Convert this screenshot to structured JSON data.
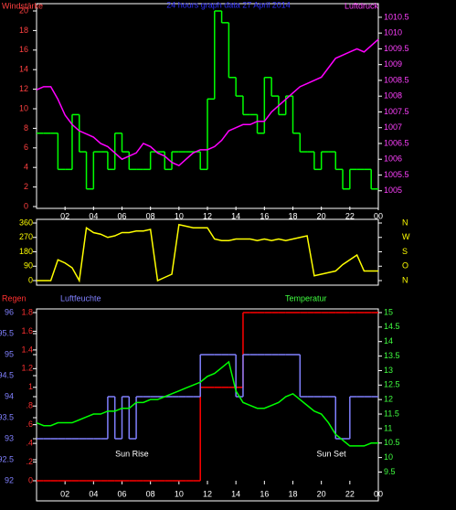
{
  "chart_data": [
    {
      "type": "line",
      "title": "24 hours graph data 27 April 2014",
      "x": [
        0,
        0.5,
        1,
        1.5,
        2,
        2.5,
        3,
        3.5,
        4,
        4.5,
        5,
        5.5,
        6,
        6.5,
        7,
        7.5,
        8,
        8.5,
        9,
        9.5,
        10,
        10.5,
        11,
        11.5,
        12,
        12.5,
        13,
        13.5,
        14,
        14.5,
        15,
        15.5,
        16,
        16.5,
        17,
        17.5,
        18,
        18.5,
        19,
        19.5,
        20,
        20.5,
        21,
        21.5,
        22,
        22.5,
        23,
        23.5,
        24
      ],
      "xlim": [
        0,
        24
      ],
      "xticks": [
        {
          "value": 2,
          "label": "02"
        },
        {
          "value": 4,
          "label": "04"
        },
        {
          "value": 6,
          "label": "06"
        },
        {
          "value": 8,
          "label": "08"
        },
        10,
        12,
        14,
        16,
        18,
        20,
        22,
        {
          "value": 24,
          "label": "00"
        }
      ],
      "ylim": [
        0,
        20
      ],
      "yticks": [
        0,
        2,
        4,
        6,
        8,
        10,
        12,
        14,
        16,
        18,
        20
      ],
      "y2lim": [
        1004.5,
        1010.7
      ],
      "y2ticks": [
        1005,
        1005.5,
        1006,
        1006.5,
        1007,
        1007.5,
        1008,
        1008.5,
        1009,
        1009.5,
        1010,
        1010.5
      ],
      "series": [
        {
          "name": "Windstärke",
          "color": "#00ff00",
          "step": true,
          "values": [
            7.5,
            7.5,
            7.5,
            3.8,
            3.8,
            9.4,
            5.6,
            1.8,
            5.6,
            5.6,
            3.8,
            7.5,
            5.6,
            3.8,
            3.8,
            3.8,
            5.6,
            5.6,
            3.8,
            5.6,
            5.6,
            5.6,
            5.6,
            3.8,
            11,
            20,
            18.8,
            13.2,
            11.3,
            9.4,
            9.4,
            7.5,
            13.2,
            11.3,
            9.4,
            11.3,
            7.5,
            5.6,
            5.6,
            3.8,
            5.6,
            5.6,
            3.8,
            1.8,
            3.8,
            3.8,
            3.8,
            1.8,
            1.8
          ]
        },
        {
          "name": "Luftdruck",
          "color": "#ff00ff",
          "axis": "y2",
          "values": [
            1008.2,
            1008.3,
            1008.3,
            1007.9,
            1007.4,
            1007.1,
            1006.9,
            1006.8,
            1006.7,
            1006.5,
            1006.4,
            1006.2,
            1006,
            1006.1,
            1006.2,
            1006.5,
            1006.4,
            1006.2,
            1006.1,
            1005.9,
            1005.8,
            1006,
            1006.2,
            1006.3,
            1006.3,
            1006.4,
            1006.6,
            1006.9,
            1007,
            1007.1,
            1007.1,
            1007.2,
            1007.2,
            1007.5,
            1007.7,
            1007.9,
            1008.1,
            1008.3,
            1008.4,
            1008.5,
            1008.6,
            1008.9,
            1009.2,
            1009.3,
            1009.4,
            1009.5,
            1009.4,
            1009.6,
            1009.8
          ]
        }
      ]
    },
    {
      "type": "line",
      "x": [
        0,
        0.5,
        1,
        1.5,
        2,
        2.5,
        3,
        3.5,
        4,
        4.5,
        5,
        5.5,
        6,
        6.5,
        7,
        7.5,
        8,
        8.5,
        9,
        9.5,
        10,
        10.5,
        11,
        11.5,
        12,
        12.5,
        13,
        13.5,
        14,
        14.5,
        15,
        15.5,
        16,
        16.5,
        17,
        17.5,
        18,
        18.5,
        19,
        19.5,
        20,
        20.5,
        21,
        21.5,
        22,
        22.5,
        23,
        23.5,
        24
      ],
      "xlim": [
        0,
        24
      ],
      "ylim": [
        0,
        360
      ],
      "yticks": [
        0,
        90,
        180,
        270,
        360
      ],
      "y2lim": [
        0,
        360
      ],
      "y2ticks": [
        {
          "value": 360,
          "label": "N"
        },
        {
          "value": 270,
          "label": "W"
        },
        {
          "value": 180,
          "label": "S"
        },
        {
          "value": 90,
          "label": "O"
        },
        {
          "value": 0,
          "label": "N"
        }
      ],
      "series": [
        {
          "color": "#ffff00",
          "values": [
            0,
            0,
            0,
            130,
            110,
            80,
            0,
            330,
            300,
            290,
            270,
            280,
            300,
            300,
            310,
            310,
            320,
            0,
            20,
            40,
            350,
            340,
            330,
            330,
            330,
            260,
            250,
            250,
            260,
            260,
            260,
            250,
            260,
            250,
            260,
            250,
            260,
            270,
            280,
            30,
            40,
            50,
            60,
            100,
            130,
            160,
            60,
            60,
            60
          ]
        }
      ]
    },
    {
      "type": "line",
      "x": [
        0,
        0.5,
        1,
        1.5,
        2,
        2.5,
        3,
        3.5,
        4,
        4.5,
        5,
        5.5,
        6,
        6.5,
        7,
        7.5,
        8,
        8.5,
        9,
        9.5,
        10,
        10.5,
        11,
        11.5,
        12,
        12.5,
        13,
        13.5,
        14,
        14.5,
        15,
        15.5,
        16,
        16.5,
        17,
        17.5,
        18,
        18.5,
        19,
        19.5,
        20,
        20.5,
        21,
        21.5,
        22,
        22.5,
        23,
        23.5,
        24
      ],
      "xlim": [
        0,
        24
      ],
      "xticks": [
        {
          "value": 2,
          "label": "02"
        },
        {
          "value": 4,
          "label": "04"
        },
        {
          "value": 6,
          "label": "06"
        },
        {
          "value": 8,
          "label": "08"
        },
        10,
        12,
        14,
        16,
        18,
        20,
        22,
        {
          "value": 24,
          "label": "00"
        }
      ],
      "ylim": [
        92,
        96
      ],
      "yticks": [
        92,
        92.5,
        93,
        93.5,
        94,
        94.5,
        95,
        95.5,
        96
      ],
      "y2lim": [
        9.2,
        15
      ],
      "y2ticks": [
        9.5,
        10,
        10.5,
        11,
        11.5,
        12,
        12.5,
        13,
        13.5,
        14,
        14.5,
        15
      ],
      "y3lim": [
        0,
        1.8
      ],
      "y3ticks": [
        0,
        {
          "value": 0.2,
          "label": ".2"
        },
        {
          "value": 0.4,
          "label": ".4"
        },
        {
          "value": 0.6,
          "label": ".6"
        },
        {
          "value": 0.8,
          "label": ".8"
        },
        1,
        1.2,
        1.4,
        1.6,
        1.8
      ],
      "annotations": [
        {
          "text": "Sun Rise",
          "x": 6.7
        },
        {
          "text": "Sun Set",
          "x": 20.7
        }
      ],
      "series": [
        {
          "name": "Regen",
          "color": "#ff0000",
          "axis": "y3",
          "step": true,
          "values": [
            0,
            0,
            0,
            0,
            0,
            0,
            0,
            0,
            0,
            0,
            0,
            0,
            0,
            0,
            0,
            0,
            0,
            0,
            0,
            0,
            0,
            0,
            0,
            1,
            1,
            1,
            1,
            1,
            1,
            1.8,
            1.8,
            1.8,
            1.8,
            1.8,
            1.8,
            1.8,
            1.8,
            1.8,
            1.8,
            1.8,
            1.8,
            1.8,
            1.8,
            1.8,
            1.8,
            1.8,
            1.8,
            1.8,
            1.8
          ]
        },
        {
          "name": "Luftfeuchte",
          "color": "#8080ff",
          "step": true,
          "values": [
            93,
            93,
            93,
            93,
            93,
            93,
            93,
            93,
            93,
            93,
            94,
            93,
            94,
            93,
            94,
            94,
            94,
            94,
            94,
            94,
            94,
            94,
            94,
            95,
            95,
            95,
            95,
            95,
            94,
            95,
            95,
            95,
            95,
            95,
            95,
            95,
            95,
            94,
            94,
            94,
            94,
            94,
            93,
            93,
            94,
            94,
            94,
            94,
            94
          ]
        },
        {
          "name": "Temperatur",
          "color": "#00ff00",
          "axis": "y2",
          "values": [
            11.2,
            11.1,
            11.1,
            11.2,
            11.2,
            11.2,
            11.3,
            11.4,
            11.5,
            11.5,
            11.6,
            11.6,
            11.7,
            11.7,
            11.9,
            11.9,
            12.0,
            12.0,
            12.1,
            12.2,
            12.3,
            12.4,
            12.5,
            12.6,
            12.8,
            12.9,
            13.1,
            13.3,
            12.3,
            11.9,
            11.8,
            11.7,
            11.7,
            11.8,
            11.9,
            12.1,
            12.2,
            12.0,
            11.8,
            11.6,
            11.5,
            11.2,
            10.8,
            10.6,
            10.4,
            10.4,
            10.4,
            10.5,
            10.5
          ]
        }
      ]
    }
  ]
}
